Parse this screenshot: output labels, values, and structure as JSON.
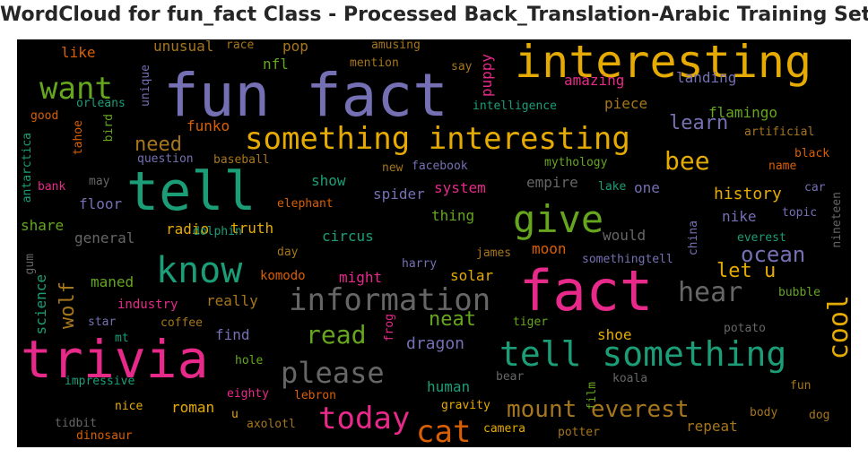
{
  "title": "WordCloud for fun_fact Class - Processed Back_Translation-Arabic Training Set",
  "palette": {
    "teal": "#1b9e77",
    "orange": "#d95f02",
    "purple": "#7570b3",
    "pink": "#e7298a",
    "green": "#66a61e",
    "gold": "#e6ab02",
    "brown": "#a6761d",
    "gray": "#666666"
  },
  "words": [
    "fun fact",
    "interesting",
    "fact",
    "trivia",
    "tell",
    "something interesting",
    "give",
    "tell something",
    "know",
    "information",
    "want",
    "please",
    "today",
    "cat",
    "mount everest",
    "hear",
    "cool",
    "read",
    "ocean",
    "bee",
    "learn",
    "let u",
    "neat",
    "wolf",
    "need",
    "dragon",
    "history",
    "amazing",
    "landing",
    "flamingo",
    "piece",
    "funko",
    "pop",
    "unusual",
    "puppy",
    "like",
    "nfl",
    "science",
    "floor",
    "thing",
    "system",
    "spider",
    "empire",
    "one",
    "nike",
    "share",
    "general",
    "radio",
    "truth",
    "circus",
    "show",
    "komodo",
    "might",
    "solar",
    "would",
    "moon",
    "maned",
    "really",
    "industry",
    "find",
    "human",
    "roman",
    "repeat",
    "elephant",
    "race",
    "amusing",
    "mention",
    "say",
    "unique",
    "orleans",
    "good",
    "intelligence",
    "tahoe",
    "bird",
    "artificial",
    "bank",
    "question",
    "baseball",
    "new",
    "facebook",
    "mythology",
    "name",
    "black",
    "antarctica",
    "may",
    "lake",
    "car",
    "topic",
    "everest",
    "dolphin",
    "day",
    "harry",
    "james",
    "china",
    "nineteen",
    "gum",
    "somethingtell",
    "bubble",
    "star",
    "coffee",
    "mt",
    "frog",
    "tiger",
    "potato",
    "shoe",
    "hole",
    "impressive",
    "bear",
    "film",
    "koala",
    "fun",
    "eighty",
    "lebron",
    "gravity",
    "nice",
    "u",
    "tidbit",
    "body",
    "dog",
    "axolotl",
    "camera",
    "potter",
    "dinosaur"
  ]
}
